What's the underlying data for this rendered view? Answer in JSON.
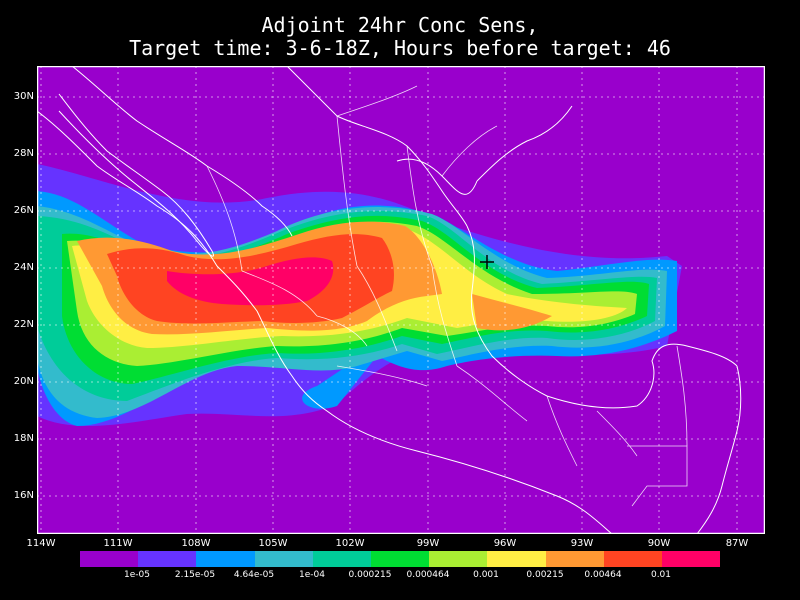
{
  "title": {
    "line1": "Adjoint 24hr Conc Sens,",
    "line2": "Target time: 3-6-18Z, Hours before target: 46"
  },
  "lat_labels": [
    "30N",
    "28N",
    "26N",
    "24N",
    "22N",
    "20N",
    "18N",
    "16N"
  ],
  "lon_labels": [
    "114W",
    "111W",
    "108W",
    "105W",
    "102W",
    "99W",
    "96W",
    "93W",
    "90W",
    "87W"
  ],
  "colorbar": {
    "colors": [
      "#9900cc",
      "#6633ff",
      "#0099ff",
      "#33bbcc",
      "#00cc99",
      "#00dd33",
      "#aaee33",
      "#ffee44",
      "#ff9933",
      "#ff4422",
      "#ff0066"
    ],
    "labels": [
      "1e-05",
      "2.15e-05",
      "4.64e-05",
      "1e-04",
      "0.000215",
      "0.000464",
      "0.001",
      "0.00215",
      "0.00464",
      "0.01"
    ]
  },
  "map": {
    "background_color": "#9900cc",
    "coastline_color": "#ffffff",
    "grid_color": "#ffffff",
    "target_marker": {
      "lon": -96.1,
      "lat": 24.2,
      "symbol": "+"
    }
  }
}
